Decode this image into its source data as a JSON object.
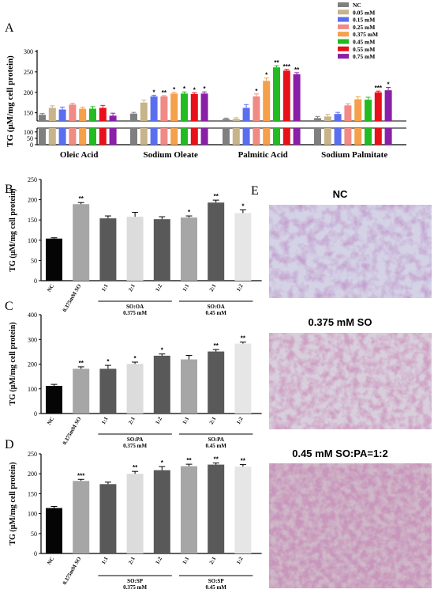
{
  "chart_data": [
    {
      "panel": "A",
      "type": "bar",
      "ylabel": "TG (μM/mg cell protein)",
      "categories": [
        "Oleic Acid",
        "Sodium Oleate",
        "Palmitic Acid",
        "Sodium Palmitate"
      ],
      "legend": [
        "NC",
        "0.05 mM",
        "0.15 mM",
        "0.25 mM",
        "0.375 mM",
        "0.45 mM",
        "0.55 mM",
        "0.75 mM"
      ],
      "colors": [
        "#7f7f7f",
        "#c8b48a",
        "#5a6ef0",
        "#f08a84",
        "#f5a04a",
        "#22bb22",
        "#e8101a",
        "#8a1fa8"
      ],
      "yticks_upper": [
        150,
        200,
        250,
        300
      ],
      "yticks_lower": [
        0,
        50,
        100
      ],
      "ylim_lower": [
        0,
        130
      ],
      "ylim_upper": [
        130,
        300
      ],
      "values": [
        [
          145,
          162,
          158,
          170,
          160,
          160,
          162,
          143
        ],
        [
          148,
          175,
          190,
          190,
          197,
          197,
          196,
          197
        ],
        [
          135,
          135,
          162,
          190,
          228,
          261,
          253,
          244
        ],
        [
          137,
          141,
          147,
          168,
          183,
          182,
          200,
          205
        ]
      ],
      "errors": [
        [
          3,
          5,
          6,
          3,
          4,
          5,
          6,
          6
        ],
        [
          3,
          6,
          3,
          2,
          3,
          4,
          3,
          4
        ],
        [
          2,
          3,
          8,
          6,
          7,
          4,
          3,
          4
        ],
        [
          4,
          5,
          4,
          4,
          6,
          6,
          3,
          7
        ]
      ],
      "stars": [
        [
          "",
          "",
          "",
          "",
          "",
          "",
          "",
          ""
        ],
        [
          "",
          "",
          "*",
          "**",
          "*",
          "*",
          "*",
          "*"
        ],
        [
          "",
          "",
          "",
          "*",
          "*",
          "**",
          "***",
          "**"
        ],
        [
          "",
          "",
          "",
          "",
          "",
          "",
          "***",
          "*"
        ]
      ]
    },
    {
      "panel": "B",
      "type": "bar",
      "ylabel": "TG (μM/mg cell protein)",
      "yticks": [
        0,
        50,
        100,
        150,
        200,
        250
      ],
      "ylim": [
        0,
        250
      ],
      "categories": [
        "NC",
        "0.375mM SO",
        "1:1",
        "2:1",
        "1:2",
        "1:1",
        "2:1",
        "1:2"
      ],
      "groups": [
        {
          "label": "SO:OA",
          "sub": "0.375 mM",
          "from": 2,
          "to": 4
        },
        {
          "label": "SO:OA",
          "sub": "0.45 mM",
          "from": 5,
          "to": 7
        }
      ],
      "values": [
        104,
        189,
        154,
        158,
        152,
        156,
        193,
        167
      ],
      "errors": [
        2,
        4,
        6,
        11,
        6,
        4,
        6,
        8
      ],
      "stars": [
        "",
        "**",
        "",
        "",
        "",
        "*",
        "**",
        "*"
      ],
      "colors": [
        "#050505",
        "#a6a6a6",
        "#595959",
        "#dcdcdc",
        "#595959",
        "#a6a6a6",
        "#595959",
        "#e6e6e6"
      ]
    },
    {
      "panel": "C",
      "type": "bar",
      "ylabel": "TG (μM/mg cell protein)",
      "yticks": [
        0,
        100,
        200,
        300,
        400
      ],
      "ylim": [
        0,
        400
      ],
      "categories": [
        "NC",
        "0.375mM SO",
        "1:1",
        "2:1",
        "1:2",
        "1:1",
        "2:1",
        "1:2"
      ],
      "groups": [
        {
          "label": "SO:PA",
          "sub": "0.375 mM",
          "from": 2,
          "to": 4
        },
        {
          "label": "SO:PA",
          "sub": "0.45 mM",
          "from": 5,
          "to": 7
        }
      ],
      "values": [
        112,
        181,
        181,
        201,
        234,
        219,
        251,
        283
      ],
      "errors": [
        6,
        8,
        14,
        7,
        7,
        16,
        8,
        6
      ],
      "stars": [
        "",
        "**",
        "*",
        "*",
        "*",
        "",
        "**",
        "**"
      ],
      "colors": [
        "#050505",
        "#a6a6a6",
        "#595959",
        "#dcdcdc",
        "#595959",
        "#a6a6a6",
        "#595959",
        "#e6e6e6"
      ]
    },
    {
      "panel": "D",
      "type": "bar",
      "ylabel": "TG (μM/mg cell protein)",
      "yticks": [
        0,
        50,
        100,
        150,
        200,
        250
      ],
      "ylim": [
        0,
        250
      ],
      "categories": [
        "NC",
        "0.375mM SO",
        "1:1",
        "2:1",
        "1:2",
        "1:1",
        "2:1",
        "1:2"
      ],
      "groups": [
        {
          "label": "SO:SP",
          "sub": "0.375 mM",
          "from": 2,
          "to": 4
        },
        {
          "label": "SO:SP",
          "sub": "0.45 mM",
          "from": 5,
          "to": 7
        }
      ],
      "values": [
        114,
        182,
        174,
        200,
        209,
        219,
        223,
        218
      ],
      "errors": [
        4,
        4,
        5,
        6,
        9,
        5,
        4,
        5
      ],
      "stars": [
        "",
        "***",
        "",
        "**",
        "*",
        "**",
        "**",
        "**"
      ],
      "colors": [
        "#050505",
        "#a6a6a6",
        "#595959",
        "#dcdcdc",
        "#595959",
        "#a6a6a6",
        "#595959",
        "#e6e6e6"
      ]
    }
  ],
  "labels": {
    "A": "A",
    "B": "B",
    "C": "C",
    "D": "D",
    "E": "E"
  },
  "micrographs": [
    {
      "title": "NC"
    },
    {
      "title": "0.375 mM SO"
    },
    {
      "title": "0.45 mM SO:PA=1:2"
    }
  ]
}
